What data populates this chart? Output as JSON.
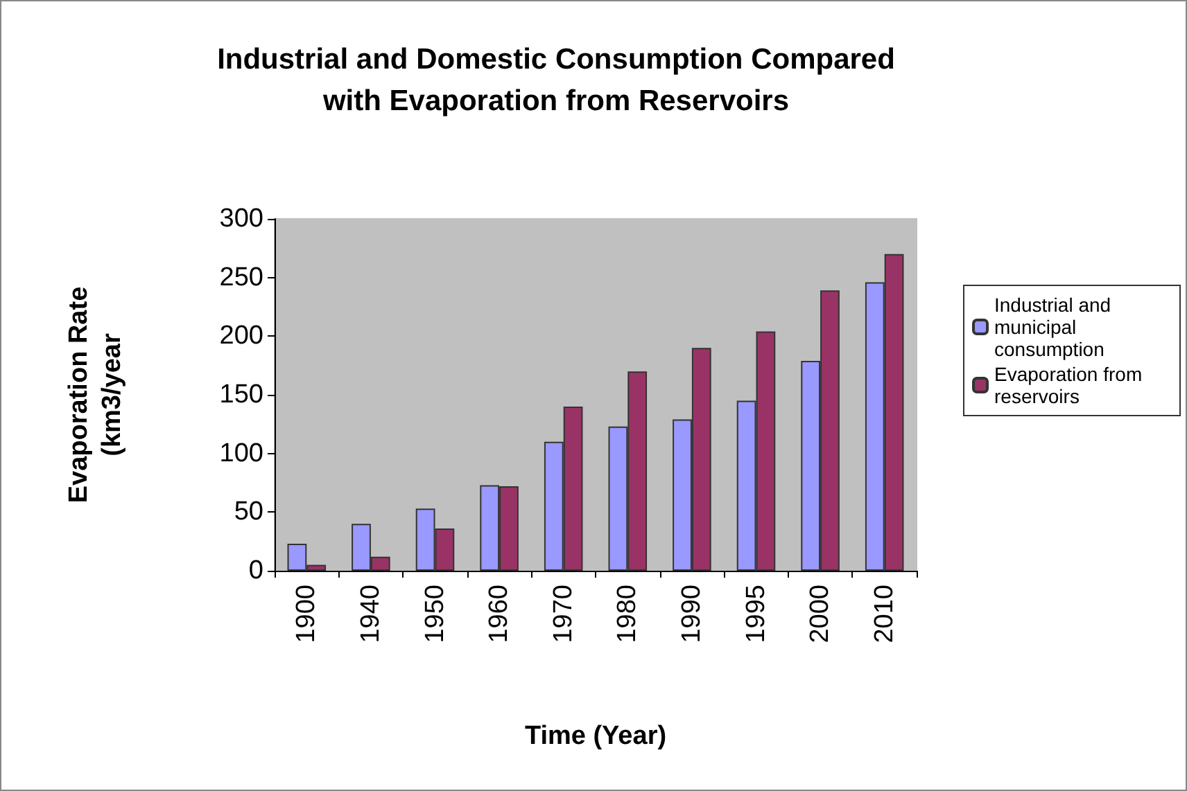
{
  "chart_data": {
    "type": "bar",
    "title": "Industrial and Domestic Consumption Compared\nwith Evaporation from Reservoirs",
    "xlabel": "Time (Year)",
    "ylabel": "Evaporation Rate\n(km3/year",
    "categories": [
      "1900",
      "1940",
      "1950",
      "1960",
      "1970",
      "1980",
      "1990",
      "1995",
      "2000",
      "2010"
    ],
    "series": [
      {
        "name": "Industrial and municipal consumption",
        "color": "#9999ff",
        "values": [
          23,
          40,
          53,
          73,
          110,
          123,
          129,
          145,
          179,
          246
        ]
      },
      {
        "name": "Evaporation from reservoirs",
        "color": "#993366",
        "values": [
          5,
          12,
          36,
          72,
          140,
          170,
          190,
          204,
          239,
          270
        ]
      }
    ],
    "ylim": [
      0,
      300
    ],
    "yticks": [
      0,
      50,
      100,
      150,
      200,
      250,
      300
    ],
    "grid": false,
    "legend": "right"
  }
}
